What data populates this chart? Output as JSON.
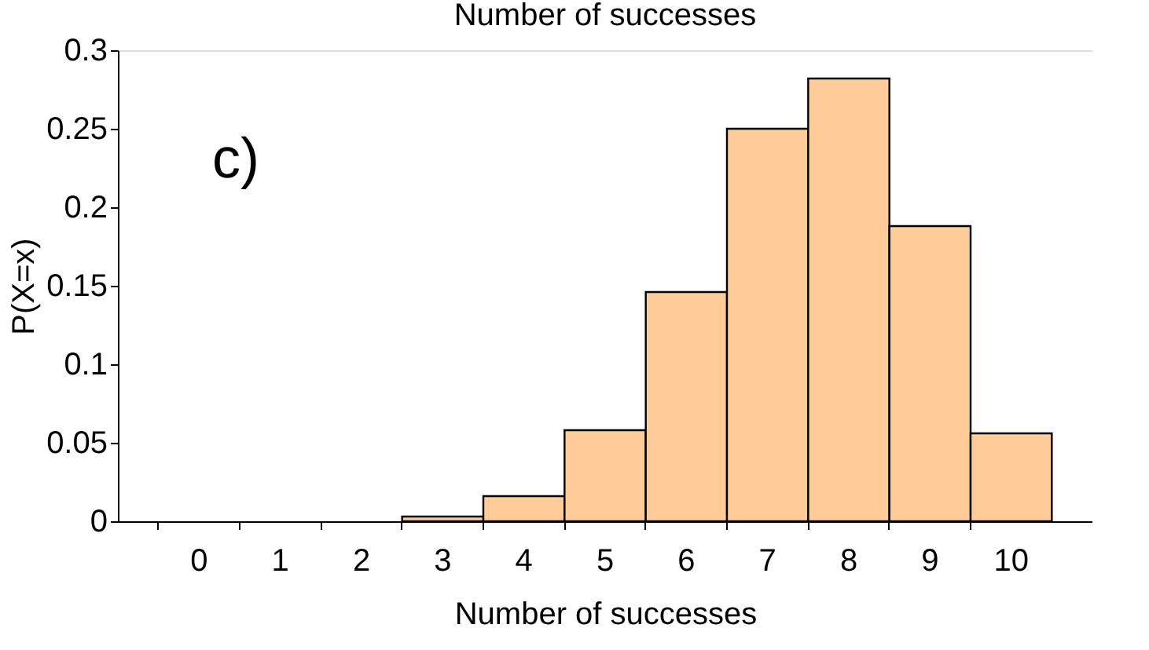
{
  "chart_data": {
    "type": "bar",
    "title": "Number of successes",
    "xlabel": "Number of successes",
    "ylabel": "P(X=x)",
    "categories": [
      "0",
      "1",
      "2",
      "3",
      "4",
      "5",
      "6",
      "7",
      "8",
      "9",
      "10"
    ],
    "values": [
      0,
      0,
      0,
      0.003,
      0.016,
      0.058,
      0.146,
      0.25,
      0.282,
      0.188,
      0.056
    ],
    "color": "#ffcc99",
    "ylim": [
      0,
      0.3
    ],
    "yticks": [
      0,
      0.05,
      0.1,
      0.15,
      0.2,
      0.25,
      0.3
    ],
    "annotations": [
      "c)"
    ],
    "grid": false
  }
}
